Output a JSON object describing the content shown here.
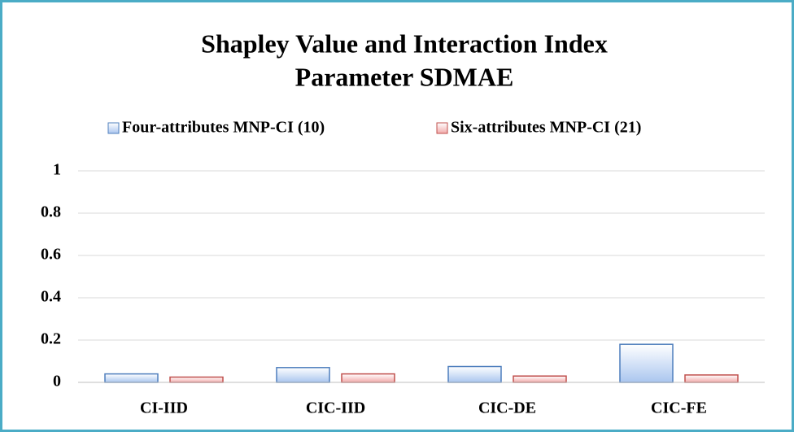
{
  "chart_data": {
    "type": "bar",
    "title": "Shapley Value and Interaction Index",
    "subtitle": "Parameter SDMAE",
    "categories": [
      "CI-IID",
      "CIC-IID",
      "CIC-DE",
      "CIC-FE"
    ],
    "series": [
      {
        "name": "Four-attributes MNP-CI (10)",
        "color": "#aac6ef",
        "edge": "#4f7fbd",
        "values": [
          0.04,
          0.07,
          0.075,
          0.18
        ]
      },
      {
        "name": "Six-attributes MNP-CI (21)",
        "color": "#f2aaaa",
        "edge": "#c0504d",
        "values": [
          0.025,
          0.04,
          0.03,
          0.035
        ]
      }
    ],
    "ylim": [
      0,
      1
    ],
    "yticks": [
      0,
      0.2,
      0.4,
      0.6,
      0.8,
      1
    ],
    "grid": true,
    "legend": "top"
  }
}
